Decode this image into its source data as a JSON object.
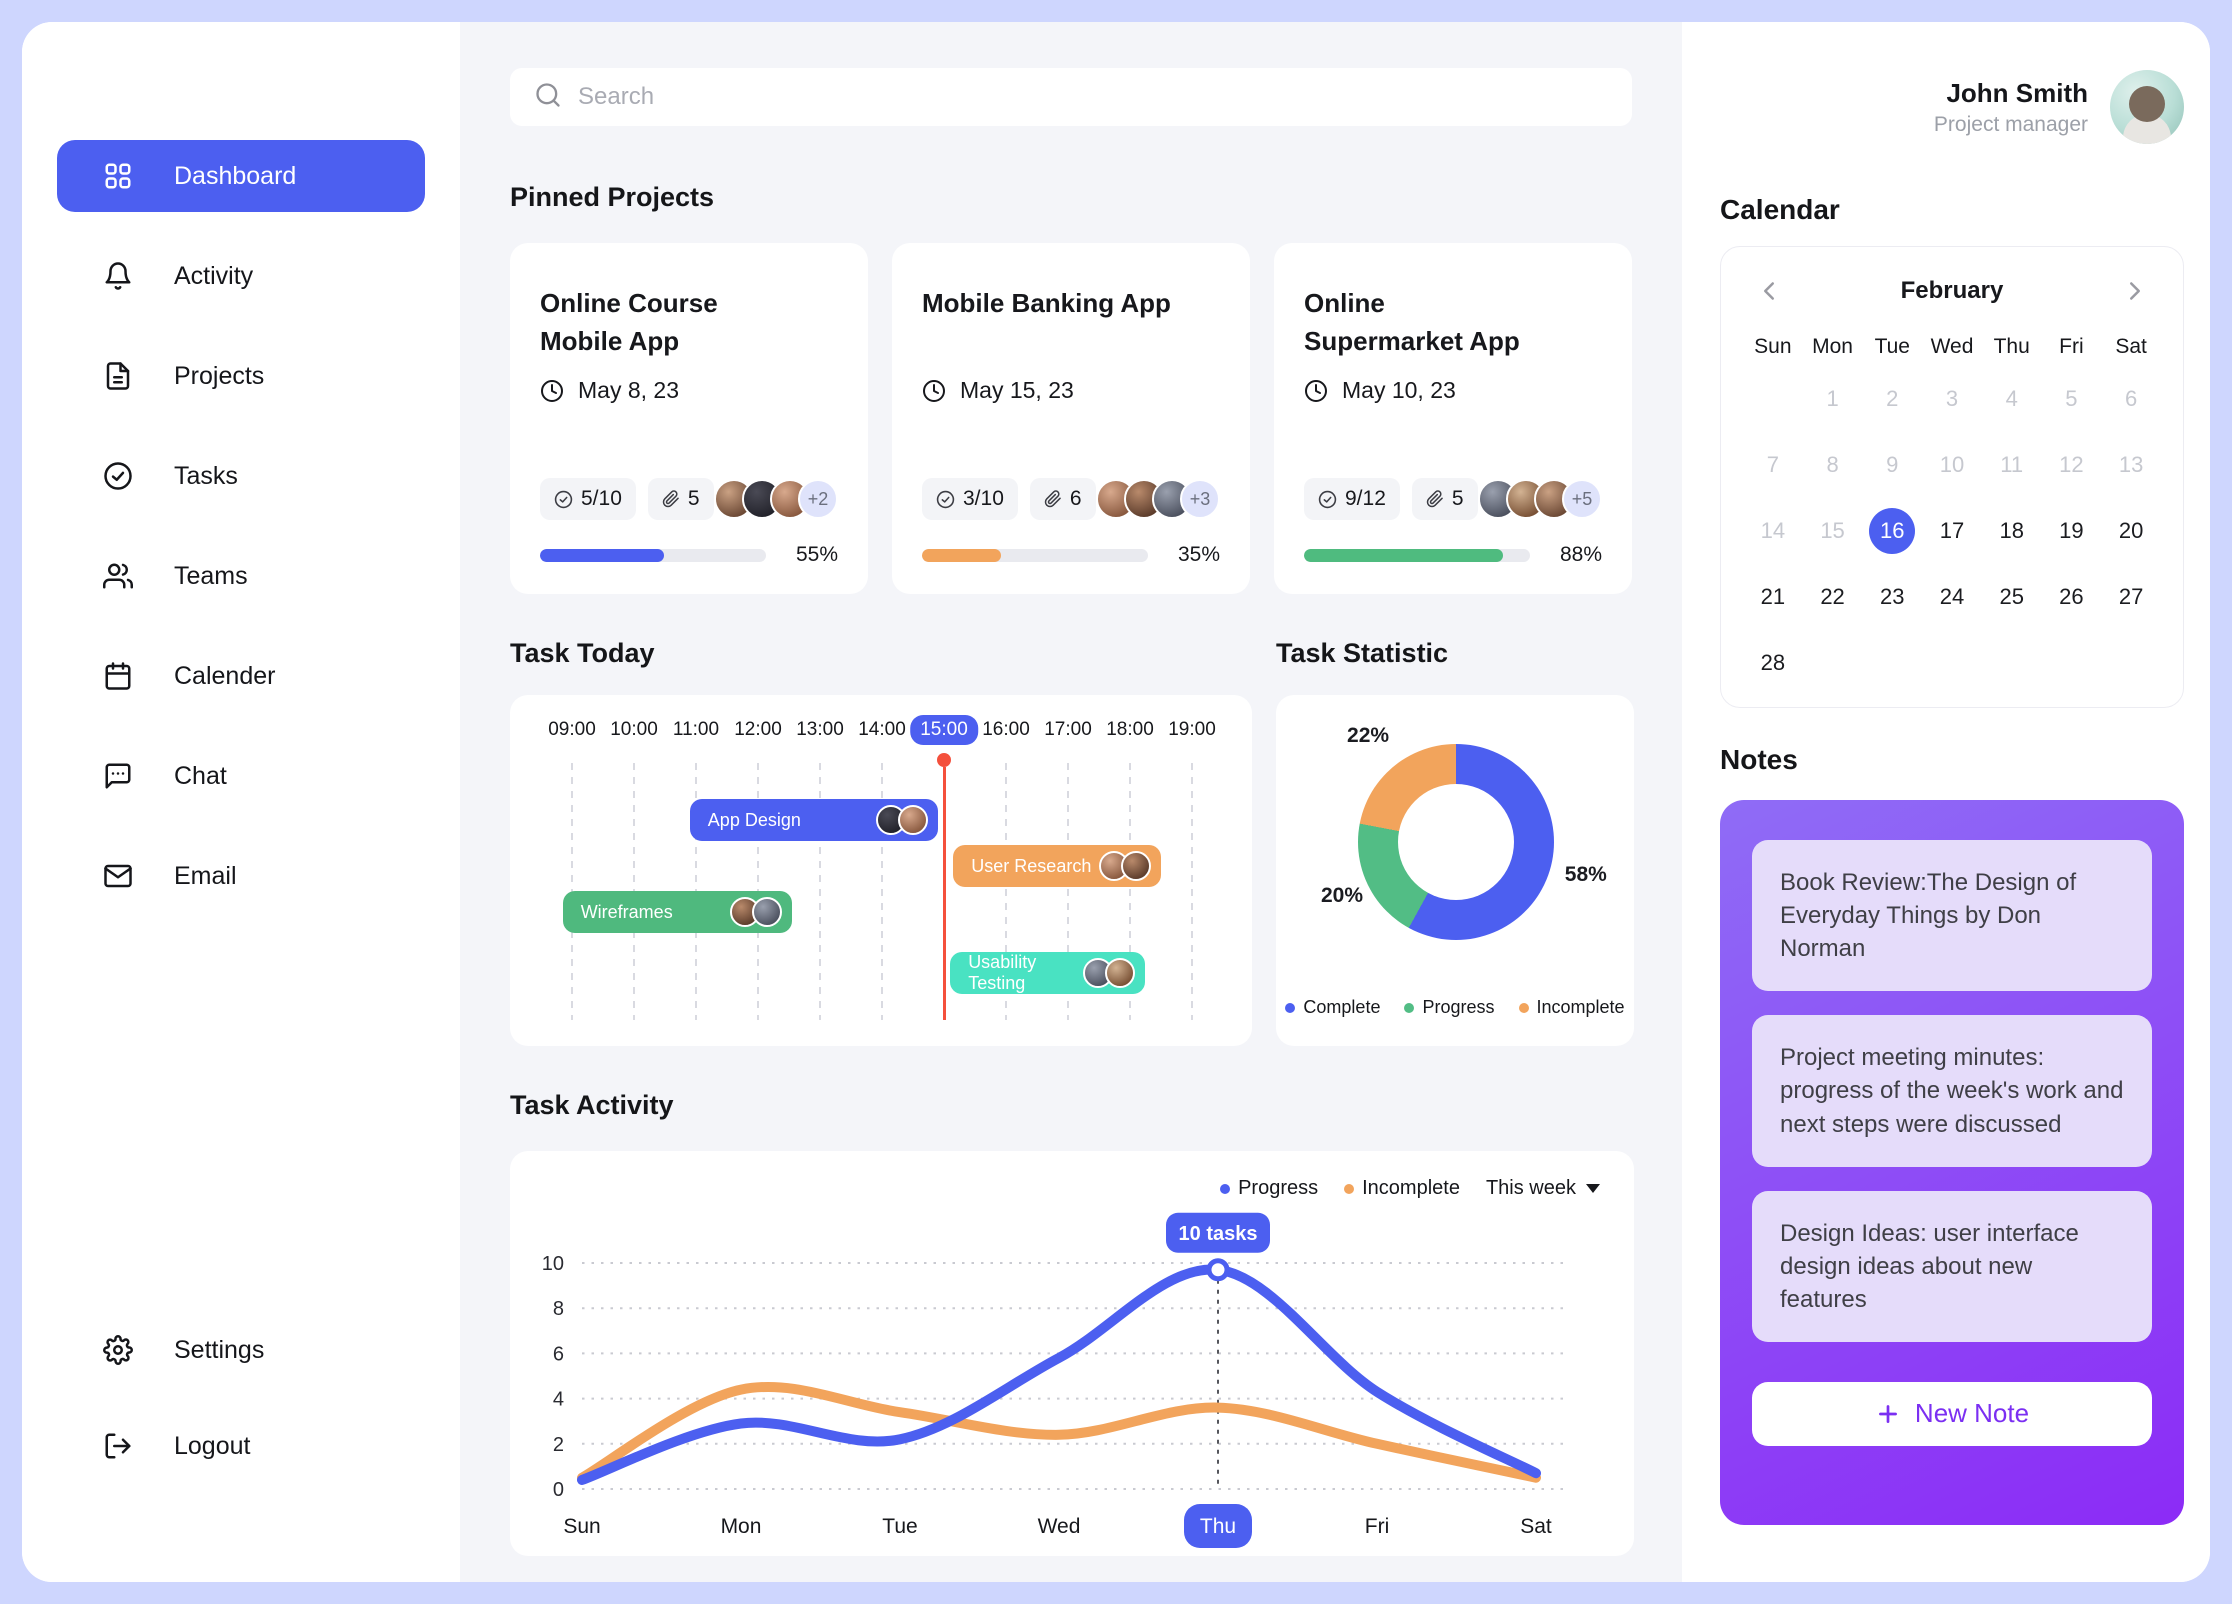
{
  "colors": {
    "accent_blue": "#4C5FF0",
    "orange": "#F2A45C",
    "green": "#4FBB7F",
    "teal": "#49E2C2",
    "red_now_line": "#F4503C",
    "notes_gradient": [
      "#8F6CF6",
      "#8C2BF6"
    ],
    "note_card_bg": "#E5DCFA",
    "new_note_text": "#7B2FF2"
  },
  "sidebar": {
    "items": [
      {
        "label": "Dashboard",
        "icon": "dashboard-icon",
        "active": true
      },
      {
        "label": "Activity",
        "icon": "bell-icon",
        "active": false
      },
      {
        "label": "Projects",
        "icon": "document-icon",
        "active": false
      },
      {
        "label": "Tasks",
        "icon": "check-circle-icon",
        "active": false
      },
      {
        "label": "Teams",
        "icon": "users-icon",
        "active": false
      },
      {
        "label": "Calender",
        "icon": "calendar-icon",
        "active": false
      },
      {
        "label": "Chat",
        "icon": "chat-bubble-icon",
        "active": false
      },
      {
        "label": "Email",
        "icon": "envelope-icon",
        "active": false
      }
    ],
    "footer_items": [
      {
        "label": "Settings",
        "icon": "gear-icon"
      },
      {
        "label": "Logout",
        "icon": "logout-icon"
      }
    ]
  },
  "search": {
    "placeholder": "Search"
  },
  "pinned": {
    "title": "Pinned Projects",
    "cards": [
      {
        "title_lines": [
          "Online Course",
          "Mobile App"
        ],
        "date": "May 8, 23",
        "tasks": "5/10",
        "attachments": "5",
        "extra": "+2",
        "progress_pct": 55,
        "progress_label": "55%",
        "bar_color": "#4C5FF0",
        "avatars": 3
      },
      {
        "title_lines": [
          "Mobile Banking  App"
        ],
        "date": "May 15, 23",
        "tasks": "3/10",
        "attachments": "6",
        "extra": "+3",
        "progress_pct": 35,
        "progress_label": "35%",
        "bar_color": "#F2A45C",
        "avatars": 3
      },
      {
        "title_lines": [
          "Online",
          "Supermarket App"
        ],
        "date": "May 10, 23",
        "tasks": "9/12",
        "attachments": "5",
        "extra": "+5",
        "progress_pct": 88,
        "progress_label": "88%",
        "bar_color": "#4FBB7F",
        "avatars": 3
      }
    ]
  },
  "task_today": {
    "title": "Task Today",
    "times": [
      "09:00",
      "10:00",
      "11:00",
      "12:00",
      "13:00",
      "14:00",
      "15:00",
      "16:00",
      "17:00",
      "18:00",
      "19:00"
    ],
    "active_time": "15:00",
    "now_hour": 15.0,
    "bars": [
      {
        "label": "App Design",
        "start": 10.9,
        "end": 14.9,
        "color": "#4C5FF0",
        "row": 0,
        "avatars": 2
      },
      {
        "label": "User Research",
        "start": 15.15,
        "end": 18.5,
        "color": "#F2A45C",
        "row": 1,
        "avatars": 2
      },
      {
        "label": "Wireframes",
        "start": 8.85,
        "end": 12.55,
        "color": "#4FB97E",
        "row": 2,
        "avatars": 2
      },
      {
        "label": "Usability Testing",
        "start": 15.1,
        "end": 18.25,
        "color": "#49E2C2",
        "row": 3,
        "avatars": 2
      }
    ]
  },
  "task_statistic": {
    "title": "Task Statistic",
    "chart_data": {
      "type": "donut",
      "labels": [
        "Complete",
        "Progress",
        "Incomplete"
      ],
      "values": [
        58,
        20,
        22
      ],
      "value_labels": [
        "58%",
        "20%",
        "22%"
      ],
      "colors": [
        "#4C5FF0",
        "#52BD85",
        "#F2A45C"
      ],
      "legend_position": "bottom"
    }
  },
  "task_activity": {
    "title": "Task Activity",
    "dropdown_label": "This week",
    "chart_data": {
      "type": "line",
      "x": [
        "Sun",
        "Mon",
        "Tue",
        "Wed",
        "Thu",
        "Fri",
        "Sat"
      ],
      "series": [
        {
          "name": "Progress",
          "color": "#4C5FF0",
          "values": [
            0.4,
            2.9,
            2.2,
            5.8,
            9.7,
            4.3,
            0.7
          ]
        },
        {
          "name": "Incomplete",
          "color": "#F2A45C",
          "values": [
            0.5,
            4.4,
            3.4,
            2.4,
            3.6,
            2.0,
            0.5
          ]
        }
      ],
      "ylim": [
        0,
        10
      ],
      "yticks": [
        0,
        2,
        4,
        6,
        8,
        10
      ],
      "grid": "dotted-horizontal",
      "highlight": {
        "x_index": 4,
        "series": "Progress",
        "tooltip": "10 tasks"
      }
    }
  },
  "profile": {
    "name": "John Smith",
    "role": "Project manager"
  },
  "calendar": {
    "title": "Calendar",
    "month": "February",
    "weekdays": [
      "Sun",
      "Mon",
      "Tue",
      "Wed",
      "Thu",
      "Fri",
      "Sat"
    ],
    "days": [
      null,
      1,
      2,
      3,
      4,
      5,
      6,
      7,
      8,
      9,
      10,
      11,
      12,
      13,
      14,
      15,
      16,
      17,
      18,
      19,
      20,
      21,
      22,
      23,
      24,
      25,
      26,
      27,
      28
    ],
    "muted_through": 15,
    "selected_day": 16
  },
  "notes": {
    "title": "Notes",
    "items": [
      "Book Review:The Design of Everyday Things by Don Norman",
      "Project meeting minutes: progress of the week's work and next steps were discussed",
      "Design Ideas: user interface design ideas about new features"
    ],
    "new_note_label": "New Note"
  }
}
